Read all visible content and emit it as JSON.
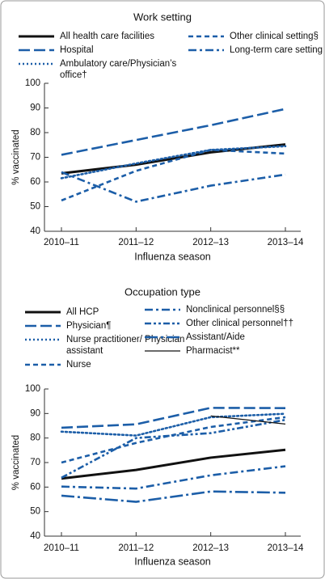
{
  "chart_data": [
    {
      "type": "line",
      "title": "Work setting",
      "xlabel": "Influenza season",
      "ylabel": "% vaccinated",
      "categories": [
        "2010–11",
        "2011–12",
        "2012–13",
        "2013–14"
      ],
      "ylim": [
        40,
        100
      ],
      "yticks": [
        40,
        50,
        60,
        70,
        80,
        90,
        100
      ],
      "series": [
        {
          "name": "All health care facilities",
          "color": "#111111",
          "style": "solid",
          "values": [
            63.5,
            67,
            72,
            75.2
          ]
        },
        {
          "name": "Hospital",
          "color": "#1c5ea8",
          "style": "long-dash",
          "values": [
            71,
            77,
            83,
            89.6
          ]
        },
        {
          "name": "Ambulatory care/Physician’s office†",
          "color": "#1c5ea8",
          "style": "dotted",
          "values": [
            61.5,
            67.5,
            73,
            74.5
          ]
        },
        {
          "name": "Other clinical setting§",
          "color": "#1c5ea8",
          "style": "dashed",
          "values": [
            52.5,
            64.5,
            73,
            71.5
          ]
        },
        {
          "name": "Long-term care setting",
          "color": "#1c5ea8",
          "style": "dash-dot",
          "values": [
            64,
            52,
            58.5,
            63
          ]
        }
      ]
    },
    {
      "type": "line",
      "title": "Occupation type",
      "xlabel": "Influenza season",
      "ylabel": "% vaccinated",
      "categories": [
        "2010–11",
        "2011–12",
        "2012–13",
        "2013–14"
      ],
      "ylim": [
        40,
        100
      ],
      "yticks": [
        40,
        50,
        60,
        70,
        80,
        90,
        100
      ],
      "series": [
        {
          "name": "All HCP",
          "color": "#111111",
          "style": "solid",
          "values": [
            63.5,
            67,
            72,
            75.2
          ]
        },
        {
          "name": "Physician¶",
          "color": "#1c5ea8",
          "style": "long-dash",
          "values": [
            84.2,
            85.6,
            92.3,
            92.2
          ]
        },
        {
          "name": "Nurse practitioner/ Physician assistant",
          "color": "#1c5ea8",
          "style": "dotted",
          "values": [
            82.6,
            81,
            88.5,
            89.9
          ]
        },
        {
          "name": "Nurse",
          "color": "#1c5ea8",
          "style": "dashed",
          "values": [
            70,
            78,
            84.5,
            88.5
          ]
        },
        {
          "name": "Nonclinical personnel§§",
          "color": "#1c5ea8",
          "style": "dash-dot",
          "values": [
            60.2,
            59.4,
            64.8,
            68.5
          ]
        },
        {
          "name": "Other clinical personnel††",
          "color": "#1c5ea8",
          "style": "dash-dot-dot",
          "values": [
            63.8,
            80,
            82,
            87.4
          ]
        },
        {
          "name": "Assistant/Aide",
          "color": "#1c5ea8",
          "style": "long-dash-dot",
          "values": [
            56.5,
            54,
            58.2,
            57.7
          ]
        },
        {
          "name": "Pharmacist**",
          "color": "#111111",
          "style": "thin",
          "values": [
            null,
            null,
            89,
            85.7
          ]
        }
      ]
    }
  ]
}
